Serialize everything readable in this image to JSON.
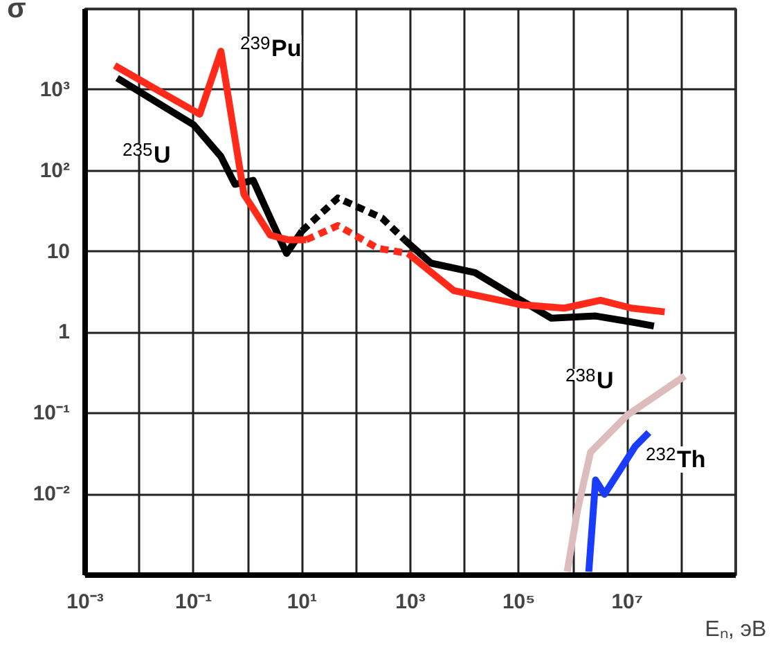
{
  "chart_data": {
    "type": "line",
    "xlabel": "Eₙ, эВ",
    "ylabel": "σ",
    "log": "xy",
    "grid": true,
    "line_style": "solid",
    "marker": "none",
    "xlim": [
      0.001,
      1000000000
    ],
    "ylim": [
      0.001,
      10000
    ],
    "xticks": [
      {
        "value": 0.001,
        "label": "10⁻³"
      },
      {
        "value": 0.01,
        "label": null
      },
      {
        "value": 0.1,
        "label": "10⁻¹"
      },
      {
        "value": 1,
        "label": null
      },
      {
        "value": 10,
        "label": "10¹"
      },
      {
        "value": 100,
        "label": null
      },
      {
        "value": 1000,
        "label": "10³"
      },
      {
        "value": 10000,
        "label": null
      },
      {
        "value": 100000,
        "label": "10⁵"
      },
      {
        "value": 1000000,
        "label": null
      },
      {
        "value": 10000000,
        "label": "10⁷"
      },
      {
        "value": 100000000,
        "label": null
      },
      {
        "value": 1000000000,
        "label": null
      }
    ],
    "yticks": [
      {
        "value": 0.001,
        "label": null
      },
      {
        "value": 0.01,
        "label": "10⁻²"
      },
      {
        "value": 0.1,
        "label": "10⁻¹"
      },
      1,
      10,
      {
        "value": 100,
        "label": "10²"
      },
      {
        "value": 1000,
        "label": "10³"
      },
      {
        "value": 10000,
        "label": null
      }
    ],
    "series": [
      {
        "color": "#000000",
        "x": [
          0.0039,
          0.1,
          0.32,
          0.58,
          1.26,
          2.6,
          5.2,
          10
        ],
        "values": [
          1400,
          370,
          150,
          68,
          76,
          26,
          9.5,
          18
        ]
      },
      {
        "color": "#000000",
        "line_style": "dashed",
        "x": [
          10,
          46,
          300,
          780
        ],
        "values": [
          18,
          46,
          26,
          14
        ]
      },
      {
        "color": "#000000",
        "x": [
          780,
          2400,
          15500,
          110000,
          400000,
          2600000,
          12000000,
          31000000
        ],
        "values": [
          14,
          7.2,
          5.5,
          2.5,
          1.5,
          1.6,
          1.35,
          1.2
        ]
      },
      {
        "color": "#ff2a1a",
        "x": [
          0.0035,
          0.13,
          0.32,
          0.85,
          2.6,
          5.5,
          12
        ],
        "values": [
          2000,
          500,
          3000,
          51,
          16,
          14,
          14
        ]
      },
      {
        "color": "#ff2a1a",
        "line_style": "dashed",
        "x": [
          12,
          46,
          250,
          900
        ],
        "values": [
          14,
          21,
          11,
          9.5
        ]
      },
      {
        "color": "#ff2a1a",
        "x": [
          900,
          6300,
          110000,
          690000,
          3200000,
          12000000,
          49000000
        ],
        "values": [
          9.5,
          3.3,
          2.2,
          2.0,
          2.5,
          2.0,
          1.8
        ]
      },
      {
        "color": "#dcbcbc",
        "x": [
          780000,
          1200000,
          2100000,
          10000000,
          115000000
        ],
        "values": [
          0.0011,
          0.0062,
          0.033,
          0.095,
          0.29
        ]
      },
      {
        "color": "#1a3cff",
        "x": [
          1950000,
          2600000,
          3800000,
          14000000,
          25000000
        ],
        "values": [
          0.0011,
          0.015,
          0.01,
          0.039,
          0.058
        ]
      }
    ],
    "annotations": [
      "$^{239}$Pu",
      "$^{235}$U",
      "$^{238}$U",
      "$^{232}$Th"
    ]
  }
}
